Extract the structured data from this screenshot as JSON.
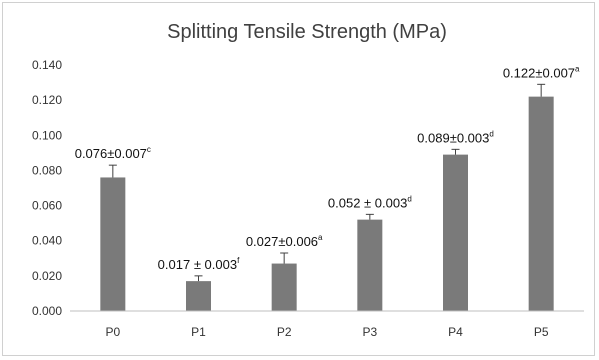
{
  "chart_data": {
    "type": "bar",
    "title": "Splitting Tensile Strength (MPa)",
    "xlabel": "",
    "ylabel": "",
    "categories": [
      "P0",
      "P1",
      "P2",
      "P3",
      "P4",
      "P5"
    ],
    "values": [
      0.076,
      0.017,
      0.027,
      0.052,
      0.089,
      0.122
    ],
    "errors": [
      0.007,
      0.003,
      0.006,
      0.003,
      0.003,
      0.007
    ],
    "data_labels": [
      {
        "text": "0.076±0.007",
        "sup": "c"
      },
      {
        "text": "0.017 ± 0.003",
        "sup": "f"
      },
      {
        "text": "0.027±0.006",
        "sup": "a"
      },
      {
        "text": "0.052 ± 0.003",
        "sup": "d"
      },
      {
        "text": "0.089±0.003",
        "sup": "d"
      },
      {
        "text": "0.122±0.007",
        "sup": "a"
      }
    ],
    "yticks": [
      "0.000",
      "0.020",
      "0.040",
      "0.060",
      "0.080",
      "0.100",
      "0.120",
      "0.140"
    ],
    "ylim": [
      0,
      0.14
    ],
    "grid": false,
    "legend": "none",
    "bar_color": "#7a7a7a",
    "error_bar_color": "#404040"
  }
}
